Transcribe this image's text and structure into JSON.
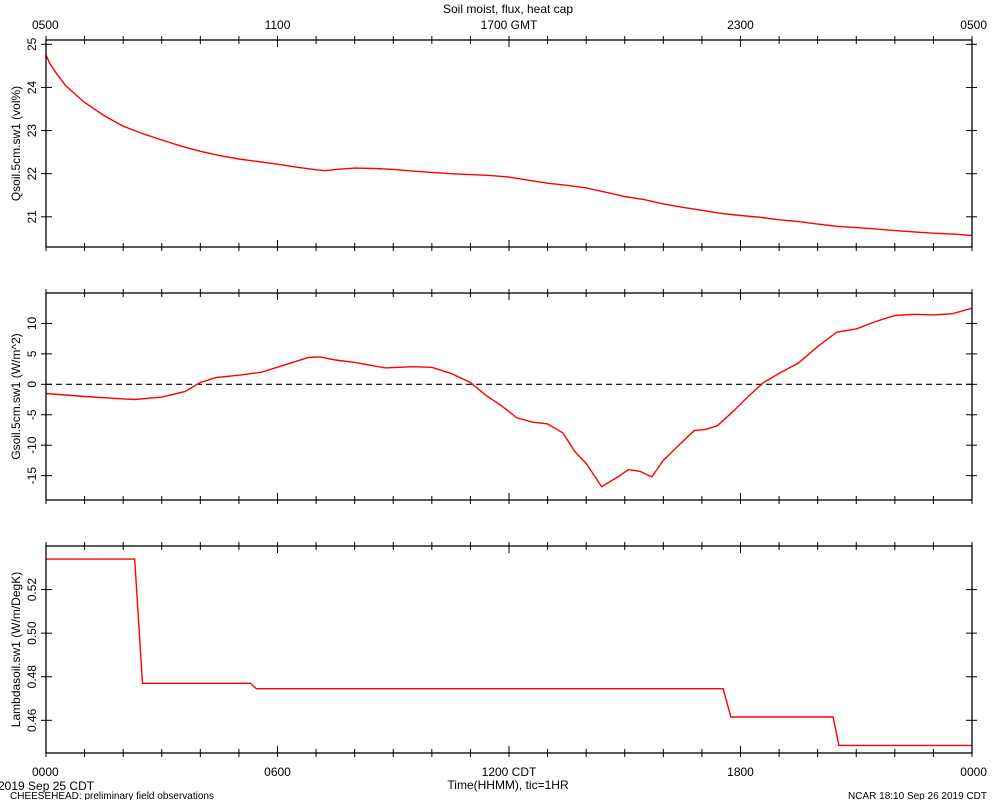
{
  "title": "Soil moist, flux, heat cap",
  "top_axis": {
    "label": "GMT",
    "ticks": [
      {
        "hour": 0,
        "label": "0500"
      },
      {
        "hour": 6,
        "label": "1100"
      },
      {
        "hour": 12,
        "label": "1700 GMT"
      },
      {
        "hour": 18,
        "label": "2300"
      },
      {
        "hour": 24,
        "label": "0500"
      }
    ]
  },
  "bottom_axis": {
    "label": "Time(HHMM), tic=1HR",
    "ticks": [
      {
        "hour": 0,
        "label": "0000"
      },
      {
        "hour": 6,
        "label": "0600"
      },
      {
        "hour": 12,
        "label": "1200 CDT"
      },
      {
        "hour": 18,
        "label": "1800"
      },
      {
        "hour": 24,
        "label": "0000"
      }
    ]
  },
  "footer": {
    "date": "2019 Sep 25 CDT",
    "project": "CHEESEHEAD: preliminary field observations",
    "stamp": "NCAR 18:10 Sep 26 2019 CDT"
  },
  "colors": {
    "series": "#ff0000",
    "axes": "#000000"
  },
  "chart_data": [
    {
      "type": "line",
      "ylabel": "Qsoil.5cm.sw1 (vol%)",
      "xlim": [
        0,
        24
      ],
      "ylim": [
        20.3,
        25.1
      ],
      "yticks": [
        21,
        22,
        23,
        24,
        25
      ],
      "ytick_labels": [
        "21",
        "22",
        "23",
        "24",
        "25"
      ],
      "series": [
        {
          "x": [
            0,
            0.1,
            0.25,
            0.5,
            0.75,
            1.0,
            1.5,
            2.0,
            2.5,
            3.0,
            3.5,
            4.0,
            4.5,
            5.0,
            5.5,
            6.0,
            6.5,
            7.0,
            7.25,
            7.5,
            8.0,
            8.5,
            9.0,
            9.5,
            10.0,
            10.5,
            11.0,
            11.5,
            12.0,
            12.5,
            13.0,
            13.5,
            14.0,
            14.5,
            15.0,
            15.5,
            16.0,
            16.5,
            17.0,
            17.5,
            18.0,
            18.5,
            19.0,
            19.5,
            20.0,
            20.5,
            21.0,
            21.5,
            22.0,
            22.5,
            23.0,
            23.5,
            24.0
          ],
          "y": [
            24.75,
            24.55,
            24.35,
            24.05,
            23.85,
            23.65,
            23.35,
            23.1,
            22.93,
            22.78,
            22.64,
            22.52,
            22.42,
            22.34,
            22.28,
            22.22,
            22.15,
            22.09,
            22.07,
            22.1,
            22.13,
            22.12,
            22.1,
            22.06,
            22.03,
            22.0,
            21.98,
            21.96,
            21.92,
            21.85,
            21.78,
            21.73,
            21.67,
            21.57,
            21.47,
            21.4,
            21.3,
            21.22,
            21.15,
            21.08,
            21.03,
            20.99,
            20.93,
            20.89,
            20.83,
            20.78,
            20.75,
            20.72,
            20.68,
            20.65,
            20.62,
            20.6,
            20.57
          ]
        }
      ]
    },
    {
      "type": "line",
      "ylabel": "Gsoil.5cm.sw1 (W/m^2)",
      "xlim": [
        0,
        24
      ],
      "ylim": [
        -19,
        15
      ],
      "yticks": [
        -15,
        -10,
        -5,
        0,
        5,
        10
      ],
      "ytick_labels": [
        "-15",
        "-10",
        "-5",
        "0",
        "5",
        "10"
      ],
      "reference_line": 0,
      "series": [
        {
          "x": [
            0,
            1.0,
            2.0,
            2.3,
            3.0,
            3.6,
            4.0,
            4.4,
            5.0,
            5.6,
            6.2,
            6.8,
            7.1,
            7.5,
            8.0,
            8.8,
            9.5,
            10.0,
            10.5,
            11.0,
            11.4,
            11.8,
            12.2,
            12.6,
            13.0,
            13.4,
            13.7,
            14.0,
            14.4,
            14.8,
            15.1,
            15.4,
            15.7,
            16.0,
            16.4,
            16.8,
            17.1,
            17.4,
            17.8,
            18.2,
            18.6,
            19.0,
            19.5,
            20.0,
            20.5,
            21.0,
            21.5,
            22.0,
            22.5,
            23.0,
            23.5,
            24.0
          ],
          "y": [
            -1.5,
            -2.0,
            -2.4,
            -2.5,
            -2.1,
            -1.2,
            0.3,
            1.1,
            1.5,
            2.0,
            3.2,
            4.4,
            4.5,
            4.0,
            3.6,
            2.7,
            2.9,
            2.8,
            1.8,
            0.3,
            -1.8,
            -3.5,
            -5.5,
            -6.2,
            -6.5,
            -8.0,
            -11.0,
            -13.0,
            -16.8,
            -15.3,
            -14.0,
            -14.3,
            -15.2,
            -12.5,
            -10.0,
            -7.6,
            -7.4,
            -6.8,
            -4.5,
            -2.0,
            0.3,
            1.8,
            3.5,
            6.2,
            8.6,
            9.1,
            10.3,
            11.3,
            11.5,
            11.4,
            11.6,
            12.5
          ]
        }
      ]
    },
    {
      "type": "line",
      "ylabel": "Lambdasoil.sw1 (W/m/DegK)",
      "xlim": [
        0,
        24
      ],
      "ylim": [
        0.445,
        0.54
      ],
      "yticks": [
        0.46,
        0.48,
        0.5,
        0.52
      ],
      "ytick_labels": [
        "0.46",
        "0.48",
        "0.50",
        "0.52"
      ],
      "series": [
        {
          "x": [
            0,
            2.3,
            2.5,
            5.3,
            5.45,
            17.55,
            17.75,
            20.4,
            20.55,
            24.0
          ],
          "y": [
            0.534,
            0.534,
            0.477,
            0.477,
            0.4745,
            0.4745,
            0.4615,
            0.4615,
            0.4485,
            0.4485
          ]
        }
      ]
    }
  ]
}
